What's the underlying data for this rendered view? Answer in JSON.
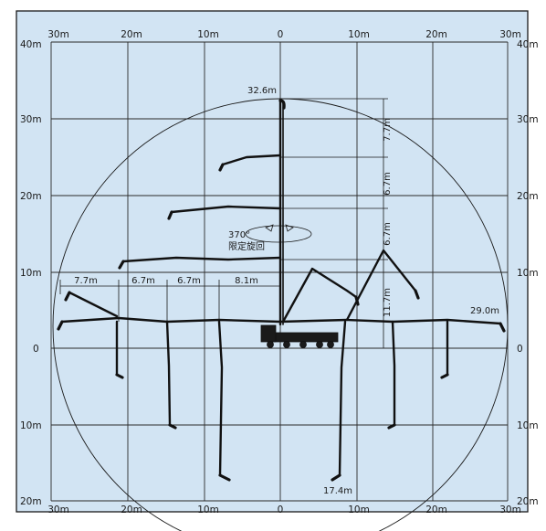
{
  "axes": {
    "top_x_labels": [
      "30m",
      "20m",
      "10m",
      "0",
      "10m",
      "20m",
      "30m"
    ],
    "bottom_x_labels": [
      "30m",
      "20m",
      "10m",
      "0",
      "10m",
      "20m",
      "30m"
    ],
    "left_y_labels": [
      "40m",
      "30m",
      "20m",
      "10m",
      "0",
      "10m",
      "20m"
    ],
    "right_y_labels": [
      "40m",
      "30m",
      "20m",
      "10m",
      "0",
      "10m",
      "20m"
    ]
  },
  "annotations": {
    "max_height": "32.6m",
    "max_reach": "29.0m",
    "max_depth": "17.4m",
    "slewing_angle": "370°",
    "slewing_note": "限定旋回",
    "vertical_dims": [
      "7.7m",
      "6.7m",
      "6.7m",
      "11.7m"
    ],
    "horizontal_dims": [
      "7.7m",
      "6.7m",
      "6.7m",
      "8.1m"
    ]
  }
}
